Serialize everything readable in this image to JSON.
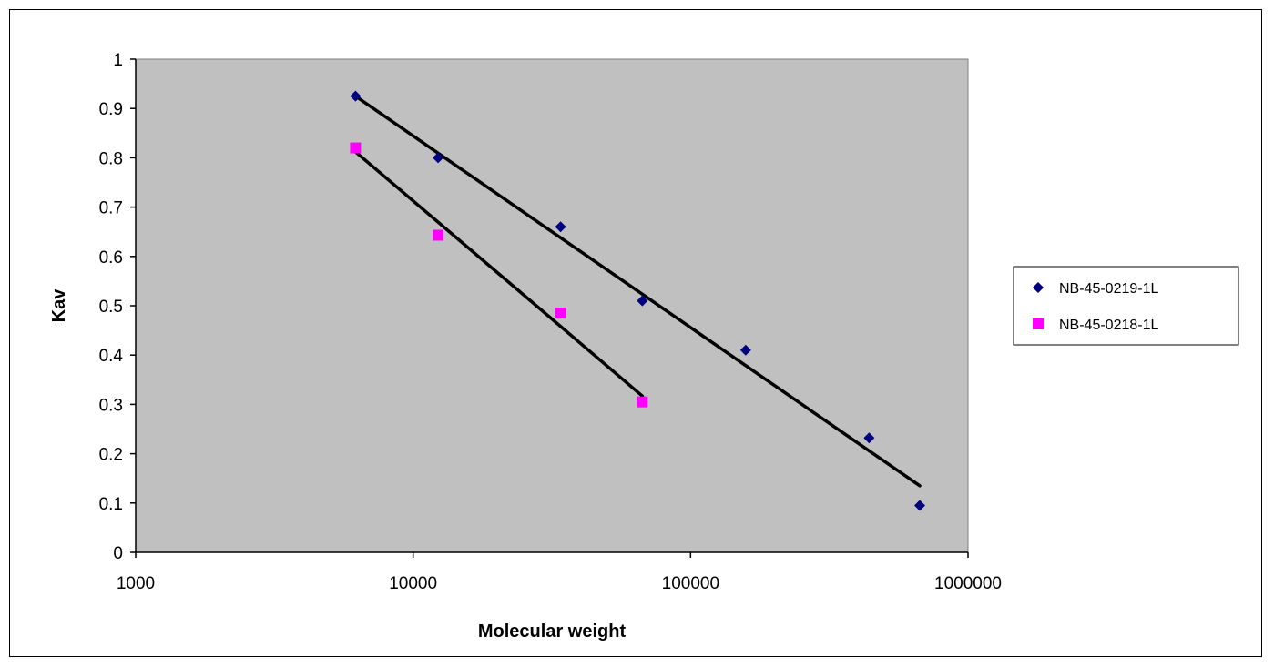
{
  "chart_data": {
    "type": "scatter",
    "title": "",
    "xlabel": "Molecular weight",
    "ylabel": "Kav",
    "xscale": "log",
    "xlim": [
      1000,
      1000000
    ],
    "ylim": [
      0,
      1
    ],
    "x_ticks": [
      1000,
      10000,
      100000,
      1000000
    ],
    "x_tick_labels": [
      "1000",
      "10000",
      "100000",
      "1000000"
    ],
    "y_ticks": [
      0,
      0.1,
      0.2,
      0.3,
      0.4,
      0.5,
      0.6,
      0.7,
      0.8,
      0.9,
      1
    ],
    "y_tick_labels": [
      "0",
      "0.1",
      "0.2",
      "0.3",
      "0.4",
      "0.5",
      "0.6",
      "0.7",
      "0.8",
      "0.9",
      "1"
    ],
    "grid": false,
    "plot_background": "#c0c0c0",
    "legend_position": "right",
    "series": [
      {
        "name": "NB-45-0219-1L",
        "marker": "diamond",
        "color": "#000080",
        "x": [
          6200,
          12300,
          34000,
          67000,
          158000,
          440000,
          670000
        ],
        "y": [
          0.925,
          0.8,
          0.66,
          0.51,
          0.41,
          0.232,
          0.095
        ],
        "trendline": {
          "x": [
            6200,
            670000
          ],
          "y": [
            0.925,
            0.135
          ]
        }
      },
      {
        "name": "NB-45-0218-1L",
        "marker": "square",
        "color": "#ff00ff",
        "x": [
          6200,
          12300,
          34000,
          67000
        ],
        "y": [
          0.82,
          0.643,
          0.485,
          0.305
        ],
        "trendline": {
          "x": [
            6200,
            67000
          ],
          "y": [
            0.812,
            0.317
          ]
        }
      }
    ]
  }
}
